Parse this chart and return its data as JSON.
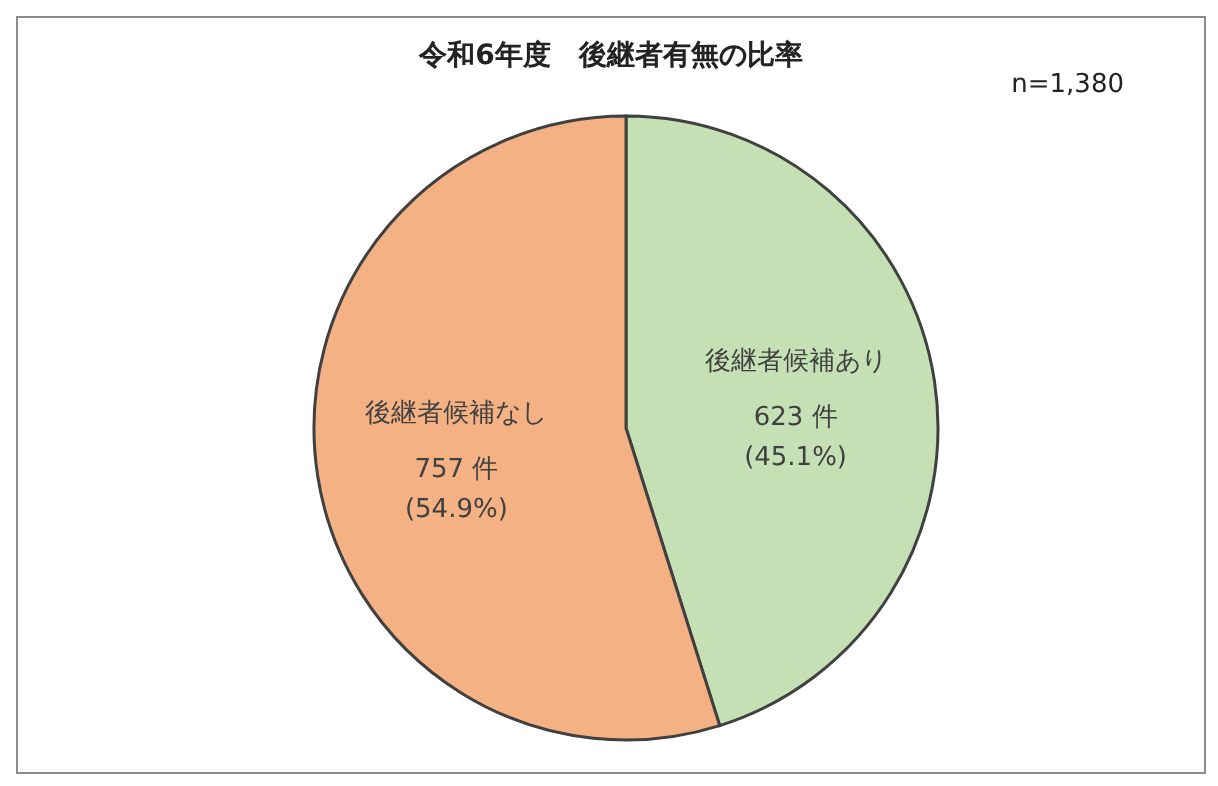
{
  "chart_data": {
    "type": "pie",
    "title": "令和6年度　後継者有無の比率",
    "annotations": [
      "n=1,380"
    ],
    "categories": [
      "後継者候補あり",
      "後継者候補なし"
    ],
    "values": [
      623,
      757
    ],
    "colors": [
      "#c5e0b4",
      "#f4b183"
    ],
    "value_labels": [
      "623 件\n(45.1%)",
      "757 件\n(54.9%)"
    ]
  }
}
